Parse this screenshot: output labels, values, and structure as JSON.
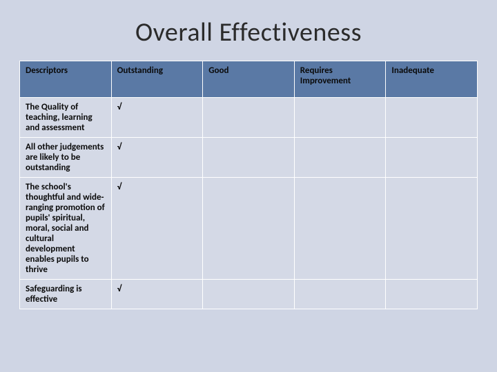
{
  "title": "Overall Effectiveness",
  "columns": [
    "Descriptors",
    "Outstanding",
    "Good",
    "Requires Improvement",
    "Inadequate"
  ],
  "col_widths_pct": [
    20,
    20,
    20,
    20,
    20
  ],
  "rows": [
    {
      "descriptor": "The Quality of teaching, learning and assessment",
      "marks": [
        "√",
        "",
        "",
        ""
      ]
    },
    {
      "descriptor": "All other judgements are likely to be outstanding",
      "marks": [
        "√",
        "",
        "",
        ""
      ]
    },
    {
      "descriptor": "The school's thoughtful and wide-ranging promotion of pupils' spiritual, moral, social and cultural development enables pupils to thrive",
      "marks": [
        "√",
        "",
        "",
        ""
      ]
    },
    {
      "descriptor": "Safeguarding is effective",
      "marks": [
        "√",
        "",
        "",
        ""
      ]
    }
  ],
  "style": {
    "slide_bg": "#cfd5e4",
    "title_color": "#2b2b2b",
    "header_bg": "#5a79a5",
    "header_text": "#0a0a0a",
    "cell_bg": "#d4d9e6",
    "cell_text": "#0a0a0a",
    "border_color": "#ffffff",
    "title_fontsize": 38,
    "header_fontsize": 13,
    "cell_fontsize": 13
  }
}
